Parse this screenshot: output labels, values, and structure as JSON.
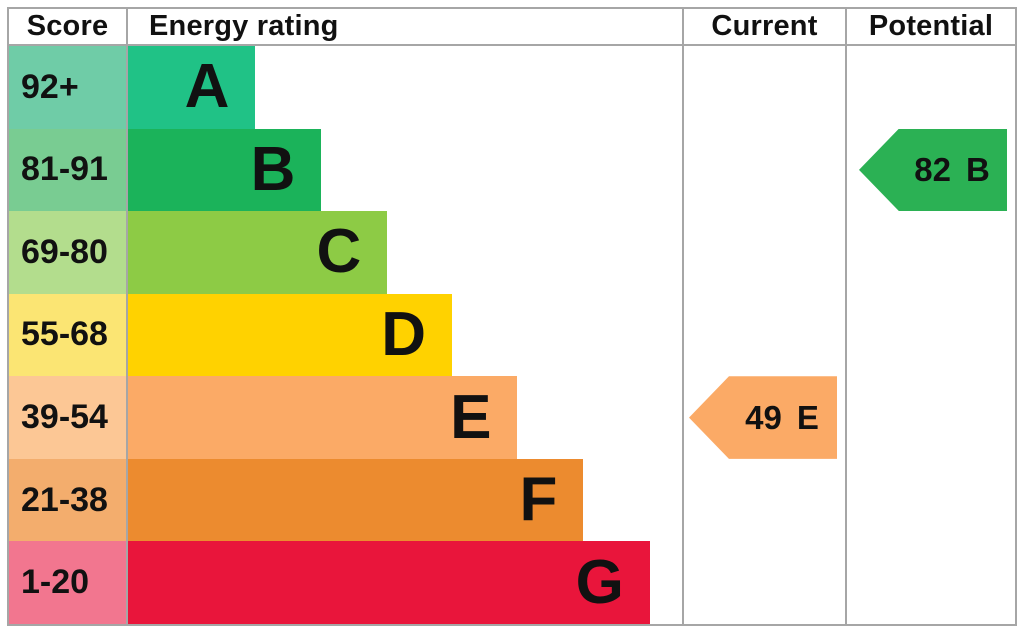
{
  "header": {
    "score": "Score",
    "energy_rating": "Energy rating",
    "current": "Current",
    "potential": "Potential"
  },
  "chart_data": {
    "type": "bar",
    "description": "EPC energy efficiency rating chart",
    "columns": [
      "Score",
      "Energy rating",
      "Current",
      "Potential"
    ],
    "bands": [
      {
        "score_range": "92+",
        "letter": "A",
        "bar_color": "#20c286",
        "score_bg": "#6fcca7",
        "width_pct": 23.0
      },
      {
        "score_range": "81-91",
        "letter": "B",
        "bar_color": "#1bb35a",
        "score_bg": "#79cc92",
        "width_pct": 34.9
      },
      {
        "score_range": "69-80",
        "letter": "C",
        "bar_color": "#8dcb45",
        "score_bg": "#b3dd8d",
        "width_pct": 46.8
      },
      {
        "score_range": "55-68",
        "letter": "D",
        "bar_color": "#ffd200",
        "score_bg": "#fbe573",
        "width_pct": 58.5
      },
      {
        "score_range": "39-54",
        "letter": "E",
        "bar_color": "#fbaa66",
        "score_bg": "#fcc795",
        "width_pct": 70.3
      },
      {
        "score_range": "21-38",
        "letter": "F",
        "bar_color": "#ec8b2f",
        "score_bg": "#f3ad6d",
        "width_pct": 82.2
      },
      {
        "score_range": "1-20",
        "letter": "G",
        "bar_color": "#e9153b",
        "score_bg": "#f2768f",
        "width_pct": 94.2
      }
    ],
    "current": {
      "value": "49",
      "band": "E",
      "color": "#fbaa66",
      "row_index": 4
    },
    "potential": {
      "value": "82",
      "band": "B",
      "color": "#2bb154",
      "row_index": 1
    }
  }
}
